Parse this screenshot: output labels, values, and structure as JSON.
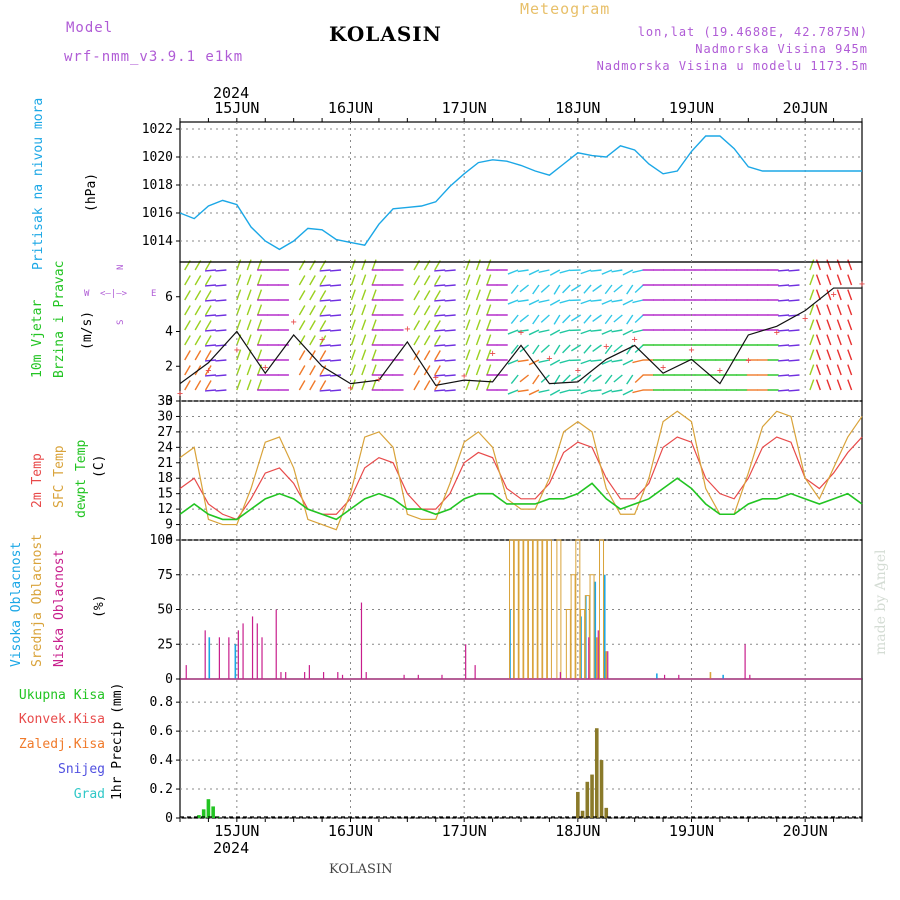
{
  "header": {
    "model_label": "Model",
    "model_name": "wrf-nmm_v3.9.1 e1km",
    "station": "KOLASIN",
    "meteogram": "Meteogram",
    "lonlat": "lon,lat (19.4688E, 42.7875N)",
    "elev": "Nadmorska Visina 945m",
    "elev_model": "Nadmorska Visina u modelu 1173.5m",
    "year_top": "2024",
    "year_bottom": "2024",
    "footer": "KOLASIN",
    "credit": "made by Angel"
  },
  "colors": {
    "pressure": "#1ba7e6",
    "temp2m": "#e84a4a",
    "sfc": "#d9a33a",
    "dew": "#22c422",
    "cloud_high": "#1ba7e6",
    "cloud_mid": "#d9a33a",
    "cloud_low": "#c81e8c",
    "rain_total": "#22c422",
    "rain_conv": "#e84a4a",
    "rain_frz": "#f07a2a",
    "snow": "#5050e0",
    "hail": "#30c8c8"
  },
  "x_axis": {
    "day_labels": [
      "15JUN",
      "16JUN",
      "17JUN",
      "18JUN",
      "19JUN",
      "20JUN"
    ],
    "hours_start": 0,
    "hours_end": 144
  },
  "chart_data": [
    {
      "type": "line",
      "panel": "pressure",
      "ylabels": [
        "Pritisak na nivou mora",
        "(hPa)"
      ],
      "ylim": [
        1012.5,
        1022.5
      ],
      "yticks": [
        "1014",
        "1016",
        "1018",
        "1020",
        "1022"
      ],
      "x": [
        0,
        3,
        6,
        9,
        12,
        15,
        18,
        21,
        24,
        27,
        30,
        33,
        36,
        39,
        42,
        45,
        48,
        51,
        54,
        57,
        60,
        63,
        66,
        69,
        72,
        75,
        78,
        81,
        84,
        87,
        90,
        93,
        96,
        99,
        102,
        105,
        108,
        111,
        114,
        117,
        120,
        123,
        126,
        129,
        132,
        135,
        138,
        141,
        144
      ],
      "series": [
        {
          "values": [
            1016.0,
            1015.6,
            1016.5,
            1016.9,
            1016.6,
            1015.0,
            1014.0,
            1013.4,
            1014.0,
            1014.9,
            1014.8,
            1014.1,
            1013.9,
            1013.7,
            1015.2,
            1016.3,
            1016.4,
            1016.5,
            1016.8,
            1017.9,
            1018.8,
            1019.6,
            1019.8,
            1019.7,
            1019.4,
            1019.0,
            1018.7,
            1019.5,
            1020.3,
            1020.1,
            1020.0,
            1020.8,
            1020.5,
            1019.5,
            1018.8,
            1019.0,
            1020.4,
            1021.5,
            1021.5,
            1020.6,
            1019.3,
            1019.0,
            1019.0,
            1019.0,
            1019.0,
            1019.0,
            1019.0,
            1019.0,
            1019.0
          ]
        }
      ]
    },
    {
      "type": "line",
      "panel": "wind",
      "ylabels": [
        "10m Vjetar",
        "Brzina i Pravac",
        "(m/s)"
      ],
      "ylim": [
        0,
        8
      ],
      "yticks": [
        "0",
        "2",
        "4",
        "6"
      ],
      "rose": [
        "N",
        "W",
        "E",
        "S"
      ],
      "x": [
        0,
        6,
        12,
        18,
        24,
        30,
        36,
        42,
        48,
        54,
        60,
        66,
        72,
        78,
        84,
        90,
        96,
        102,
        108,
        114,
        120,
        126,
        132,
        138,
        144
      ],
      "series": [
        {
          "values": [
            1.0,
            2.2,
            4.0,
            1.6,
            3.8,
            2.0,
            1.0,
            1.2,
            3.4,
            0.9,
            1.2,
            1.1,
            3.2,
            1.0,
            1.1,
            2.4,
            3.2,
            1.6,
            2.4,
            1.0,
            3.8,
            4.3,
            5.2,
            6.5,
            6.5
          ]
        },
        {
          "values": [
            0.5,
            1.8,
            3.0,
            2.0,
            4.6,
            3.6,
            0.8,
            1.3,
            4.2,
            1.4,
            1.5,
            2.8,
            4.0,
            2.5,
            1.8,
            3.2,
            3.6,
            2.0,
            3.0,
            1.8,
            2.4,
            4.0,
            4.8,
            6.2,
            6.8
          ]
        }
      ]
    },
    {
      "type": "line",
      "panel": "temperature",
      "ylabels": [
        "2m Temp",
        "SFC Temp",
        "dewpt Temp",
        "(C)"
      ],
      "ylim": [
        6,
        33
      ],
      "yticks": [
        "6",
        "9",
        "12",
        "15",
        "18",
        "21",
        "24",
        "27",
        "30",
        "33"
      ],
      "x": [
        0,
        3,
        6,
        9,
        12,
        15,
        18,
        21,
        24,
        27,
        30,
        33,
        36,
        39,
        42,
        45,
        48,
        51,
        54,
        57,
        60,
        63,
        66,
        69,
        72,
        75,
        78,
        81,
        84,
        87,
        90,
        93,
        96,
        99,
        102,
        105,
        108,
        111,
        114,
        117,
        120,
        123,
        126,
        129,
        132,
        135,
        138,
        141,
        144
      ],
      "series": [
        {
          "name": "2m Temp",
          "values": [
            16,
            18,
            13,
            11,
            10,
            14,
            19,
            20,
            17,
            12,
            11,
            11,
            14,
            20,
            22,
            21,
            15,
            12,
            12,
            15,
            21,
            23,
            22,
            16,
            14,
            14,
            17,
            23,
            25,
            24,
            18,
            14,
            14,
            17,
            24,
            26,
            25,
            18,
            15,
            14,
            18,
            24,
            26,
            25,
            18,
            16,
            19,
            23,
            26
          ]
        },
        {
          "name": "SFC Temp",
          "values": [
            22,
            24,
            10,
            9,
            9,
            16,
            25,
            26,
            20,
            10,
            9,
            8,
            15,
            26,
            27,
            24,
            11,
            10,
            10,
            17,
            25,
            27,
            24,
            14,
            12,
            12,
            18,
            27,
            29,
            27,
            16,
            11,
            11,
            18,
            29,
            31,
            29,
            16,
            11,
            11,
            19,
            28,
            31,
            30,
            18,
            14,
            20,
            26,
            30
          ]
        },
        {
          "name": "dewpt Temp",
          "values": [
            11,
            13,
            11,
            10,
            10,
            12,
            14,
            15,
            14,
            12,
            11,
            10,
            12,
            14,
            15,
            14,
            12,
            12,
            11,
            12,
            14,
            15,
            15,
            13,
            13,
            13,
            14,
            14,
            15,
            17,
            14,
            12,
            13,
            14,
            16,
            18,
            16,
            13,
            11,
            11,
            13,
            14,
            14,
            15,
            14,
            13,
            14,
            15,
            13
          ]
        }
      ]
    },
    {
      "type": "bar",
      "panel": "clouds",
      "ylabels": [
        "Visoka Oblacnost",
        "Srednja Oblacnost",
        "Niska Oblacnost",
        "(%)"
      ],
      "ylim": [
        0,
        100
      ],
      "yticks": [
        "0",
        "25",
        "50",
        "75",
        "100"
      ],
      "series": [
        {
          "name": "Visoka Oblacnost",
          "x": [
            6.5,
            12,
            70,
            85,
            86,
            88,
            90,
            101,
            115
          ],
          "values": [
            30,
            25,
            50,
            45,
            60,
            70,
            75,
            4,
            3
          ]
        },
        {
          "name": "Srednja Oblacnost",
          "x": [
            70,
            71,
            72,
            73,
            74,
            75,
            76,
            77,
            78,
            80,
            82,
            83,
            84,
            85,
            86,
            87,
            88,
            89,
            90,
            112
          ],
          "values": [
            100,
            100,
            100,
            100,
            100,
            100,
            100,
            100,
            100,
            100,
            50,
            75,
            100,
            50,
            60,
            75,
            30,
            100,
            20,
            5
          ]
        },
        {
          "name": "Niska Oblacnost",
          "x": [
            1,
            5,
            8,
            10,
            12,
            13,
            15,
            16,
            17,
            20,
            21,
            22,
            26,
            27,
            30,
            33,
            34,
            38,
            39,
            47,
            50,
            55,
            60,
            62,
            80,
            86,
            88,
            90,
            102,
            105,
            119,
            120
          ],
          "values": [
            10,
            35,
            30,
            30,
            35,
            40,
            45,
            40,
            30,
            50,
            5,
            5,
            5,
            10,
            5,
            5,
            3,
            55,
            5,
            3,
            3,
            3,
            25,
            10,
            5,
            30,
            35,
            20,
            3,
            3,
            25,
            3
          ]
        }
      ]
    },
    {
      "type": "bar",
      "panel": "precip",
      "ylabels": [
        "1hr Precip (mm)"
      ],
      "legend": [
        "Ukupna Kisa",
        "Konvek.Kisa",
        "Zaledj.Kisa",
        "Snijeg",
        "Grad"
      ],
      "ylim": [
        0,
        0.96
      ],
      "yticks": [
        "0",
        "0.2",
        "0.4",
        "0.6",
        "0.8"
      ],
      "series": [
        {
          "name": "Ukupna Kisa",
          "x": [
            4,
            5,
            6,
            7,
            8
          ],
          "values": [
            0.02,
            0.06,
            0.13,
            0.08,
            0.01
          ]
        },
        {
          "name": "Konvek.Kisa",
          "x": [
            84,
            85,
            86,
            87,
            88,
            89,
            90
          ],
          "values": [
            0.18,
            0.05,
            0.25,
            0.3,
            0.62,
            0.4,
            0.07
          ]
        }
      ]
    }
  ]
}
